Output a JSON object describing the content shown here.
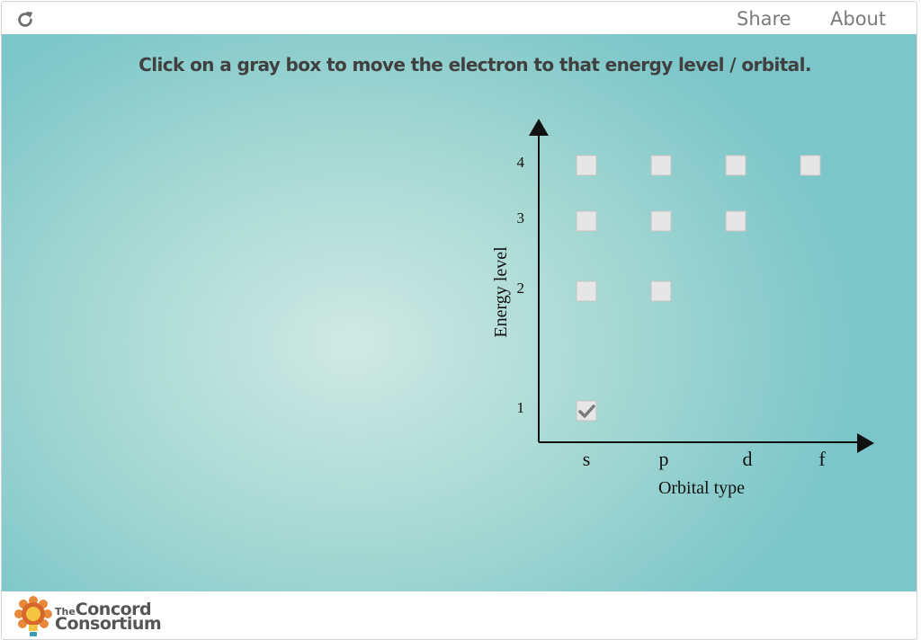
{
  "toolbar": {
    "share_label": "Share",
    "about_label": "About",
    "reload_icon": "reload-icon"
  },
  "instructions": "Click on a gray box to move the electron to that energy level / orbital.",
  "diagram": {
    "y_axis_label": "Energy level",
    "x_axis_label": "Orbital type",
    "energy_levels": [
      "1",
      "2",
      "3",
      "4"
    ],
    "orbital_types": [
      "s",
      "p",
      "d",
      "f"
    ],
    "boxes": [
      {
        "level": "1",
        "orbital": "s",
        "selected": true
      },
      {
        "level": "2",
        "orbital": "s",
        "selected": false
      },
      {
        "level": "2",
        "orbital": "p",
        "selected": false
      },
      {
        "level": "3",
        "orbital": "s",
        "selected": false
      },
      {
        "level": "3",
        "orbital": "p",
        "selected": false
      },
      {
        "level": "3",
        "orbital": "d",
        "selected": false
      },
      {
        "level": "4",
        "orbital": "s",
        "selected": false
      },
      {
        "level": "4",
        "orbital": "p",
        "selected": false
      },
      {
        "level": "4",
        "orbital": "d",
        "selected": false
      },
      {
        "level": "4",
        "orbital": "f",
        "selected": false
      }
    ],
    "selected_icon": "checkmark-icon"
  },
  "footer": {
    "brand_small": "The",
    "brand_line1": "Concord",
    "brand_line2": "Consortium"
  },
  "colors": {
    "background_center": "#cfe9e3",
    "background_edge": "#7cc6c9",
    "box_fill": "#e6e6e6",
    "axis": "#111111",
    "logo_orange": "#e8883a",
    "logo_bulb": "#f5c542"
  }
}
